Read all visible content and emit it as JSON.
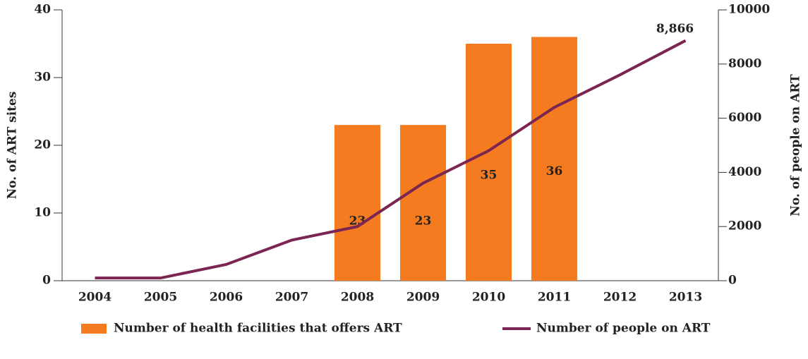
{
  "chart_data": {
    "type": "bar",
    "categories": [
      "2004",
      "2005",
      "2006",
      "2007",
      "2008",
      "2009",
      "2010",
      "2011",
      "2012",
      "2013"
    ],
    "series": [
      {
        "name": "Number of health facilities that offers ART",
        "type": "bar",
        "color": "#f47b20",
        "values": [
          null,
          null,
          null,
          null,
          23,
          23,
          35,
          36,
          null,
          null
        ]
      },
      {
        "name": "Number of people on ART",
        "type": "line",
        "axis": "y2",
        "color": "#7b2553",
        "values": [
          100,
          100,
          600,
          1500,
          2000,
          3600,
          4800,
          6400,
          7600,
          8866
        ],
        "value_labels": [
          null,
          null,
          null,
          null,
          null,
          null,
          null,
          null,
          null,
          "8,866"
        ]
      }
    ],
    "ylabel": "No. of ART sites",
    "y2label": "No. of people on ART",
    "ylim": [
      0,
      40
    ],
    "yticks": [
      0,
      10,
      20,
      30,
      40
    ],
    "y2lim": [
      0,
      10000
    ],
    "y2ticks": [
      0,
      2000,
      4000,
      6000,
      8000,
      10000
    ],
    "legend": "bottom"
  }
}
